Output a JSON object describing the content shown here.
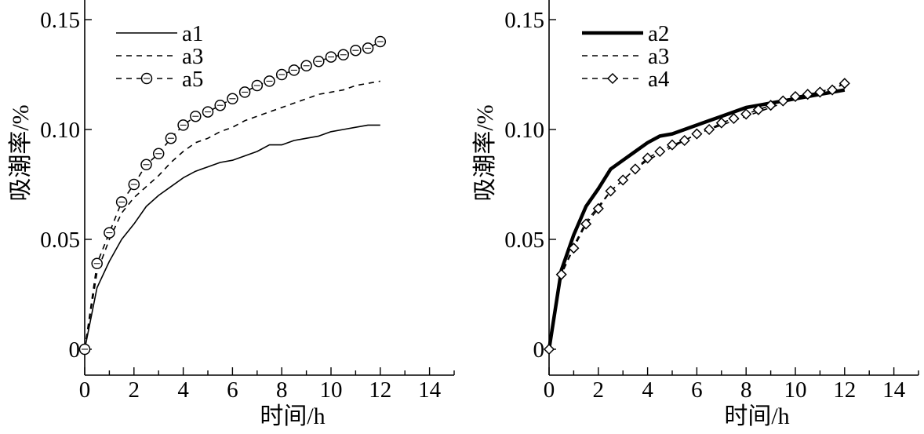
{
  "chart_data": [
    {
      "type": "line",
      "title": "",
      "xlabel": "时间/h",
      "ylabel": "吸潮率/%",
      "xlim": [
        0,
        15
      ],
      "ylim": [
        0,
        0.16
      ],
      "xticks": [
        0,
        2,
        4,
        6,
        8,
        10,
        12,
        14
      ],
      "yticks": [
        0,
        0.05,
        0.1,
        0.15
      ],
      "ytick_labels": [
        "0",
        "0.05",
        "0.10",
        "0.15"
      ],
      "legend_position": "top-left",
      "grid": false,
      "series": [
        {
          "name": "a1",
          "style": "solid",
          "marker": "none",
          "x": [
            0,
            0.5,
            1,
            1.5,
            2,
            2.5,
            3,
            3.5,
            4,
            4.5,
            5,
            5.5,
            6,
            6.5,
            7,
            7.5,
            8,
            8.5,
            9,
            9.5,
            10,
            10.5,
            11,
            11.5,
            12
          ],
          "y": [
            0,
            0.028,
            0.04,
            0.05,
            0.057,
            0.065,
            0.07,
            0.074,
            0.078,
            0.081,
            0.083,
            0.085,
            0.086,
            0.088,
            0.09,
            0.093,
            0.093,
            0.095,
            0.096,
            0.097,
            0.099,
            0.1,
            0.101,
            0.102,
            0.102
          ]
        },
        {
          "name": "a3",
          "style": "dashed",
          "marker": "none",
          "x": [
            0,
            0.5,
            1,
            1.5,
            2,
            2.5,
            3,
            3.5,
            4,
            4.5,
            5,
            5.5,
            6,
            6.5,
            7,
            7.5,
            8,
            8.5,
            9,
            9.5,
            10,
            10.5,
            11,
            11.5,
            12
          ],
          "y": [
            0,
            0.035,
            0.05,
            0.062,
            0.069,
            0.074,
            0.079,
            0.085,
            0.09,
            0.094,
            0.096,
            0.099,
            0.101,
            0.104,
            0.106,
            0.108,
            0.11,
            0.112,
            0.114,
            0.116,
            0.117,
            0.118,
            0.12,
            0.121,
            0.122
          ]
        },
        {
          "name": "a5",
          "style": "dashed",
          "marker": "circle",
          "x": [
            0,
            0.5,
            1,
            1.5,
            2,
            2.5,
            3,
            3.5,
            4,
            4.5,
            5,
            5.5,
            6,
            6.5,
            7,
            7.5,
            8,
            8.5,
            9,
            9.5,
            10,
            10.5,
            11,
            11.5,
            12
          ],
          "y": [
            0,
            0.039,
            0.053,
            0.067,
            0.075,
            0.084,
            0.089,
            0.096,
            0.102,
            0.106,
            0.108,
            0.111,
            0.114,
            0.117,
            0.12,
            0.122,
            0.125,
            0.127,
            0.129,
            0.131,
            0.133,
            0.134,
            0.136,
            0.137,
            0.14
          ]
        }
      ]
    },
    {
      "type": "line",
      "title": "",
      "xlabel": "时间/h",
      "ylabel": "吸潮率/%",
      "xlim": [
        0,
        15
      ],
      "ylim": [
        0,
        0.16
      ],
      "xticks": [
        0,
        2,
        4,
        6,
        8,
        10,
        12,
        14
      ],
      "yticks": [
        0,
        0.05,
        0.1,
        0.15
      ],
      "ytick_labels": [
        "0",
        "0.05",
        "0.10",
        "0.15"
      ],
      "legend_position": "top-left",
      "grid": false,
      "series": [
        {
          "name": "a2",
          "style": "solid-thick",
          "marker": "none",
          "x": [
            0,
            0.5,
            1,
            1.5,
            2,
            2.5,
            3,
            3.5,
            4,
            4.5,
            5,
            5.5,
            6,
            6.5,
            7,
            7.5,
            8,
            8.5,
            9,
            9.5,
            10,
            10.5,
            11,
            11.5,
            12
          ],
          "y": [
            0,
            0.036,
            0.052,
            0.065,
            0.073,
            0.082,
            0.086,
            0.09,
            0.094,
            0.097,
            0.098,
            0.1,
            0.102,
            0.104,
            0.106,
            0.108,
            0.11,
            0.111,
            0.112,
            0.113,
            0.114,
            0.115,
            0.116,
            0.117,
            0.118
          ]
        },
        {
          "name": "a3",
          "style": "dashed",
          "marker": "none",
          "x": [
            0,
            0.5,
            1,
            1.5,
            2,
            2.5,
            3,
            3.5,
            4,
            4.5,
            5,
            5.5,
            6,
            6.5,
            7,
            7.5,
            8,
            8.5,
            9,
            9.5,
            10,
            10.5,
            11,
            11.5,
            12
          ],
          "y": [
            0,
            0.034,
            0.047,
            0.058,
            0.065,
            0.072,
            0.077,
            0.082,
            0.086,
            0.089,
            0.092,
            0.095,
            0.098,
            0.1,
            0.102,
            0.104,
            0.106,
            0.108,
            0.11,
            0.112,
            0.114,
            0.116,
            0.117,
            0.119,
            0.121
          ]
        },
        {
          "name": "a4",
          "style": "dashed",
          "marker": "diamond",
          "x": [
            0,
            0.5,
            1,
            1.5,
            2,
            2.5,
            3,
            3.5,
            4,
            4.5,
            5,
            5.5,
            6,
            6.5,
            7,
            7.5,
            8,
            8.5,
            9,
            9.5,
            10,
            10.5,
            11,
            11.5,
            12
          ],
          "y": [
            0,
            0.034,
            0.046,
            0.057,
            0.064,
            0.072,
            0.077,
            0.082,
            0.087,
            0.09,
            0.093,
            0.095,
            0.098,
            0.1,
            0.103,
            0.105,
            0.107,
            0.109,
            0.111,
            0.113,
            0.115,
            0.116,
            0.117,
            0.118,
            0.121
          ]
        }
      ]
    }
  ]
}
